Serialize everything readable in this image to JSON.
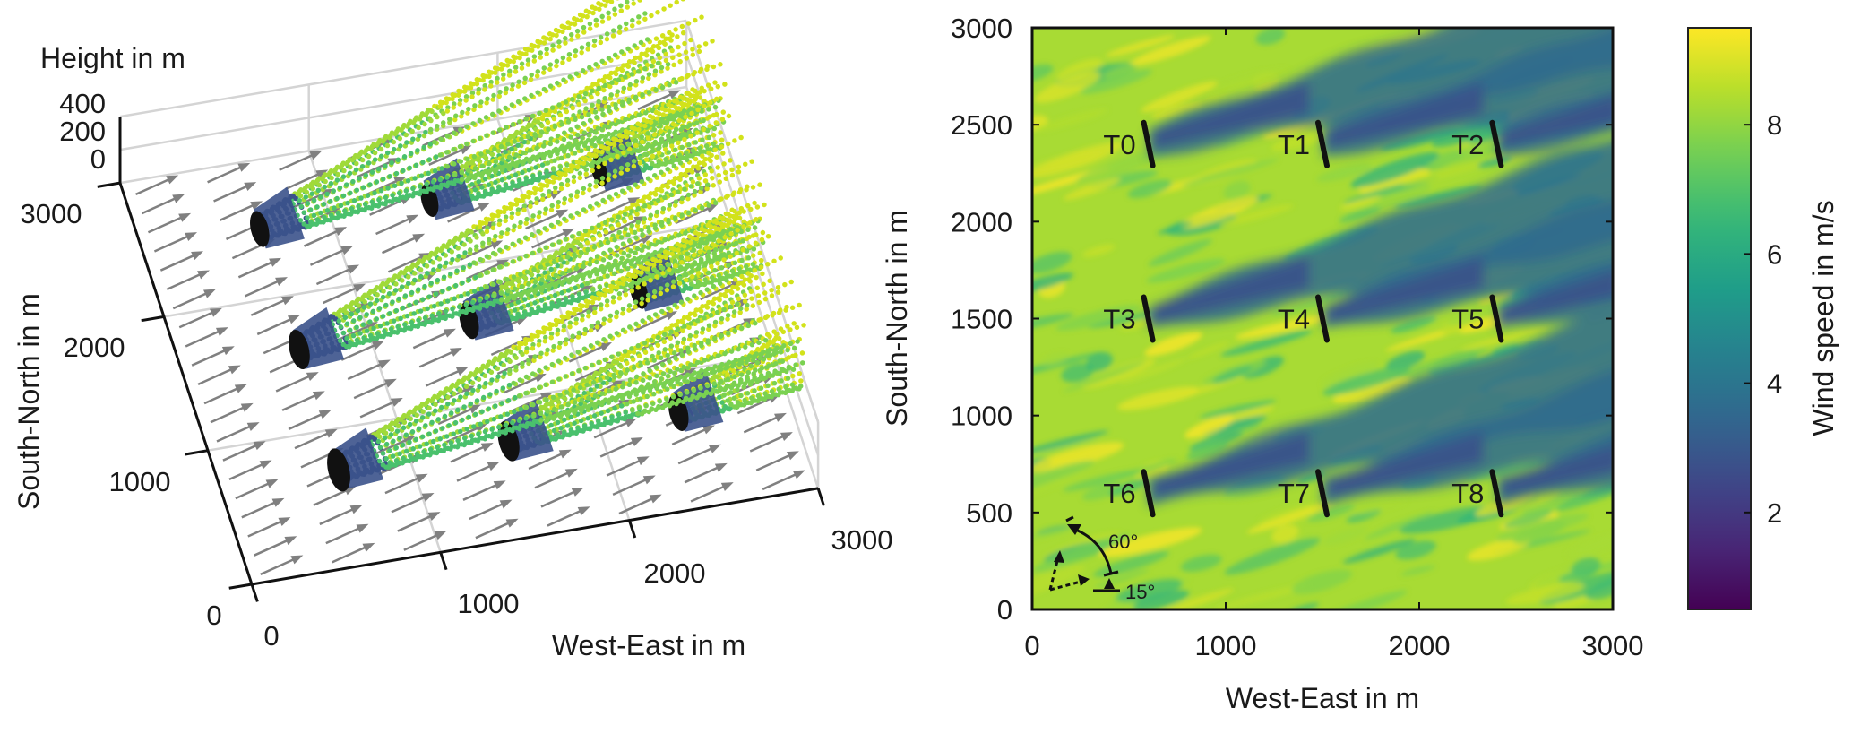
{
  "chart_data": [
    {
      "type": "scatter3d",
      "xlabel": "West-East in m",
      "ylabel": "South-North in m",
      "zlabel": "Height in m",
      "xlim": [
        0,
        3000
      ],
      "ylim": [
        0,
        3000
      ],
      "zlim": [
        0,
        400
      ],
      "xticks": [
        "0",
        "1000",
        "2000",
        "3000"
      ],
      "yticks": [
        "0",
        "1000",
        "2000",
        "3000"
      ],
      "zticks": [
        "0",
        "200",
        "400"
      ],
      "grid": true,
      "wind_direction_deg": 19,
      "turbines": [
        {
          "x": 600,
          "y": 2400
        },
        {
          "x": 1500,
          "y": 2400
        },
        {
          "x": 2400,
          "y": 2400
        },
        {
          "x": 600,
          "y": 1500
        },
        {
          "x": 1500,
          "y": 1500
        },
        {
          "x": 2400,
          "y": 1500
        },
        {
          "x": 600,
          "y": 600
        },
        {
          "x": 1500,
          "y": 600
        },
        {
          "x": 2400,
          "y": 600
        }
      ],
      "colors": {
        "near_wake": "#3b528b",
        "rotor": "#111111",
        "far_wake_low": "#7ad151",
        "far_wake_high": "#d2e21b",
        "arrows": "#808080"
      }
    },
    {
      "type": "heatmap",
      "xlabel": "West-East in m",
      "ylabel": "South-North in m",
      "xlim": [
        0,
        3000
      ],
      "ylim": [
        0,
        3000
      ],
      "xticks": [
        "0",
        "1000",
        "2000",
        "3000"
      ],
      "yticks": [
        "0",
        "500",
        "1000",
        "1500",
        "2000",
        "2500",
        "3000"
      ],
      "colormap": "viridis",
      "colorbar": {
        "label": "Wind speed in m/s",
        "range": [
          0.5,
          9.5
        ],
        "ticks": [
          "2",
          "4",
          "6",
          "8"
        ]
      },
      "turbines": [
        {
          "label": "T0",
          "x": 600,
          "y": 2400
        },
        {
          "label": "T1",
          "x": 1500,
          "y": 2400
        },
        {
          "label": "T2",
          "x": 2400,
          "y": 2400
        },
        {
          "label": "T3",
          "x": 600,
          "y": 1500
        },
        {
          "label": "T4",
          "x": 1500,
          "y": 1500
        },
        {
          "label": "T5",
          "x": 2400,
          "y": 1500
        },
        {
          "label": "T6",
          "x": 600,
          "y": 600
        },
        {
          "label": "T7",
          "x": 1500,
          "y": 600
        },
        {
          "label": "T8",
          "x": 2400,
          "y": 600
        }
      ],
      "ambient_speed": 8.5,
      "wake_speed": 2.8,
      "annotation": {
        "angle_large": "60°",
        "angle_small": "15°"
      }
    }
  ]
}
